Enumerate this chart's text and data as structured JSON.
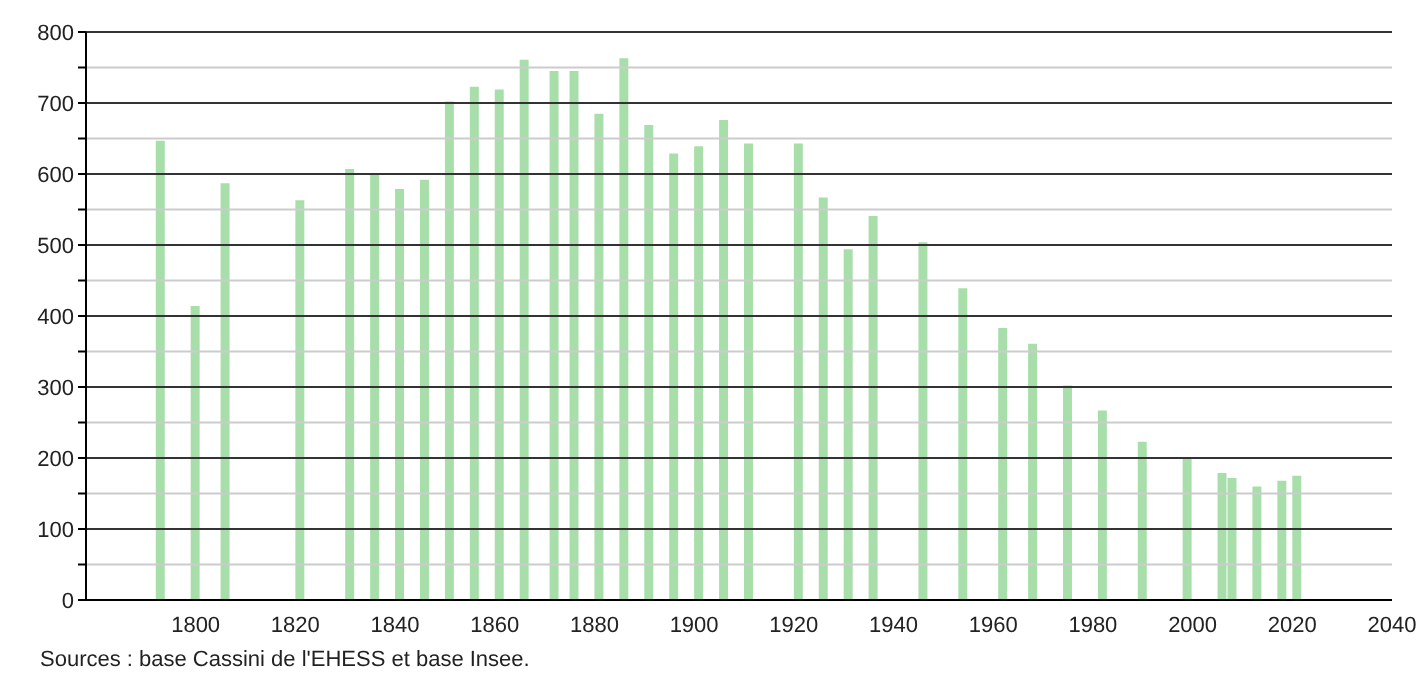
{
  "chart_data": {
    "type": "bar",
    "x": [
      1793,
      1800,
      1806,
      1821,
      1831,
      1836,
      1841,
      1846,
      1851,
      1856,
      1861,
      1866,
      1872,
      1876,
      1881,
      1886,
      1891,
      1896,
      1901,
      1906,
      1911,
      1921,
      1926,
      1931,
      1936,
      1946,
      1954,
      1962,
      1968,
      1975,
      1982,
      1990,
      1999,
      2006,
      2008,
      2013,
      2018,
      2021
    ],
    "values": [
      647,
      414,
      587,
      563,
      607,
      599,
      579,
      592,
      702,
      723,
      719,
      761,
      745,
      745,
      685,
      763,
      669,
      629,
      639,
      676,
      643,
      643,
      567,
      494,
      541,
      504,
      439,
      383,
      361,
      302,
      267,
      223,
      199,
      179,
      172,
      160,
      168,
      175
    ],
    "color": "#a8deaa",
    "xlim": [
      1778,
      2040
    ],
    "xticks": [
      1800,
      1820,
      1840,
      1860,
      1880,
      1900,
      1920,
      1940,
      1960,
      1980,
      2000,
      2020,
      2040
    ],
    "ylim": [
      0,
      800
    ],
    "yticks": [
      0,
      {
        "value": 50,
        "label": null
      },
      100,
      {
        "value": 150,
        "label": null
      },
      200,
      {
        "value": 250,
        "label": null
      },
      300,
      {
        "value": 350,
        "label": null
      },
      400,
      {
        "value": 450,
        "label": null
      },
      500,
      {
        "value": 550,
        "label": null
      },
      600,
      {
        "value": 650,
        "label": null
      },
      700,
      {
        "value": 750,
        "label": null
      },
      800
    ],
    "grid": "y",
    "annotations": [
      "Sources : base Cassini de l'EHESS et base Insee."
    ]
  }
}
